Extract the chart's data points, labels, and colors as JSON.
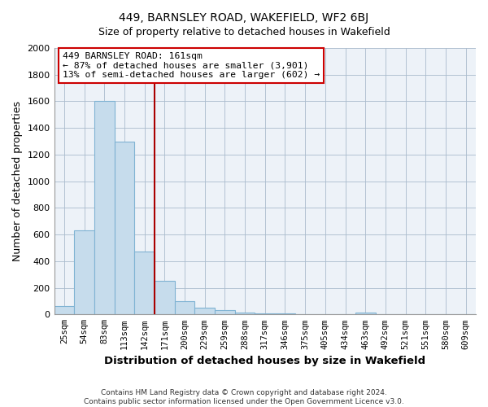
{
  "title": "449, BARNSLEY ROAD, WAKEFIELD, WF2 6BJ",
  "subtitle": "Size of property relative to detached houses in Wakefield",
  "xlabel": "Distribution of detached houses by size in Wakefield",
  "ylabel": "Number of detached properties",
  "bar_labels": [
    "25sqm",
    "54sqm",
    "83sqm",
    "113sqm",
    "142sqm",
    "171sqm",
    "200sqm",
    "229sqm",
    "259sqm",
    "288sqm",
    "317sqm",
    "346sqm",
    "375sqm",
    "405sqm",
    "434sqm",
    "463sqm",
    "492sqm",
    "521sqm",
    "551sqm",
    "580sqm",
    "609sqm"
  ],
  "bar_values": [
    60,
    630,
    1600,
    1300,
    475,
    250,
    100,
    50,
    30,
    15,
    10,
    5,
    3,
    0,
    0,
    15,
    0,
    0,
    0,
    0,
    0
  ],
  "bar_color": "#c6dcec",
  "bar_edge_color": "#7fb3d3",
  "property_line_label": "449 BARNSLEY ROAD: 161sqm",
  "annotation_line1": "← 87% of detached houses are smaller (3,901)",
  "annotation_line2": "13% of semi-detached houses are larger (602) →",
  "annotation_box_color": "white",
  "annotation_box_edgecolor": "#cc0000",
  "vline_color": "#aa0000",
  "ylim": [
    0,
    2000
  ],
  "yticks": [
    0,
    200,
    400,
    600,
    800,
    1000,
    1200,
    1400,
    1600,
    1800,
    2000
  ],
  "footer_line1": "Contains HM Land Registry data © Crown copyright and database right 2024.",
  "footer_line2": "Contains public sector information licensed under the Open Government Licence v3.0.",
  "background_color": "#e8eef5",
  "plot_bg_color": "#edf2f8"
}
